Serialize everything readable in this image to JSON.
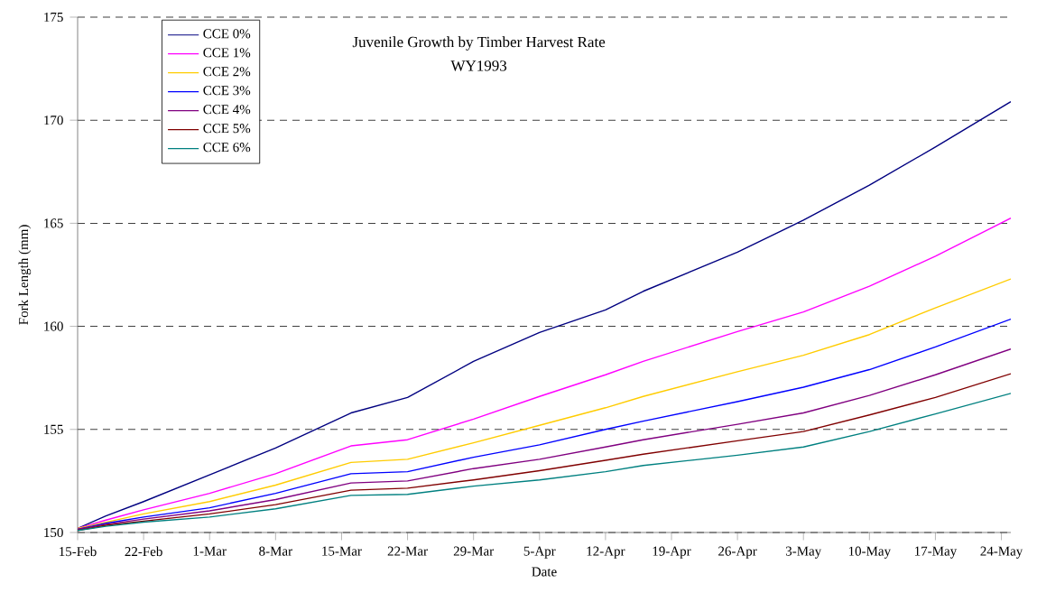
{
  "chart_data": {
    "type": "line",
    "title": "Juvenile Growth by Timber Harvest Rate",
    "subtitle": "WY1993",
    "xlabel": "Date",
    "ylabel": "Fork Length (mm)",
    "x": [
      "1993-02-15",
      "1993-02-18",
      "1993-02-22",
      "1993-03-01",
      "1993-03-08",
      "1993-03-16",
      "1993-03-22",
      "1993-03-29",
      "1993-04-05",
      "1993-04-12",
      "1993-04-16",
      "1993-04-26",
      "1993-05-03",
      "1993-05-10",
      "1993-05-17",
      "1993-05-25"
    ],
    "series": [
      {
        "name": "CCE 0%",
        "color": "#000080",
        "values": [
          150.2,
          150.8,
          151.5,
          152.8,
          154.1,
          155.8,
          156.55,
          158.3,
          159.7,
          160.8,
          161.7,
          163.6,
          165.15,
          166.85,
          168.7,
          170.9
        ]
      },
      {
        "name": "CCE 1%",
        "color": "#ff00ff",
        "values": [
          150.2,
          150.6,
          151.1,
          151.9,
          152.85,
          154.2,
          154.5,
          155.5,
          156.6,
          157.65,
          158.3,
          159.75,
          160.7,
          161.95,
          163.4,
          165.25
        ]
      },
      {
        "name": "CCE 2%",
        "color": "#ffcc00",
        "values": [
          150.2,
          150.5,
          150.9,
          151.5,
          152.3,
          153.4,
          153.55,
          154.35,
          155.2,
          156.05,
          156.6,
          157.8,
          158.6,
          159.6,
          160.9,
          162.3
        ]
      },
      {
        "name": "CCE 3%",
        "color": "#0000ff",
        "values": [
          150.15,
          150.45,
          150.75,
          151.2,
          151.9,
          152.85,
          152.95,
          153.65,
          154.25,
          155.0,
          155.4,
          156.35,
          157.05,
          157.9,
          159.0,
          160.35
        ]
      },
      {
        "name": "CCE 4%",
        "color": "#800080",
        "values": [
          150.15,
          150.4,
          150.65,
          151.05,
          151.6,
          152.4,
          152.5,
          153.1,
          153.55,
          154.15,
          154.5,
          155.25,
          155.8,
          156.65,
          157.65,
          158.9
        ]
      },
      {
        "name": "CCE 5%",
        "color": "#800000",
        "values": [
          150.1,
          150.35,
          150.55,
          150.9,
          151.35,
          152.05,
          152.15,
          152.55,
          153.0,
          153.5,
          153.8,
          154.45,
          154.9,
          155.7,
          156.55,
          157.7
        ]
      },
      {
        "name": "CCE 6%",
        "color": "#008080",
        "values": [
          150.1,
          150.3,
          150.5,
          150.75,
          151.15,
          151.8,
          151.85,
          152.25,
          152.55,
          152.95,
          153.25,
          153.75,
          154.15,
          154.9,
          155.75,
          156.75
        ]
      }
    ],
    "xlim": [
      "1993-02-15",
      "1993-05-25"
    ],
    "xticks": [
      {
        "value": "1993-02-15",
        "label": "15-Feb"
      },
      {
        "value": "1993-02-22",
        "label": "22-Feb"
      },
      {
        "value": "1993-03-01",
        "label": "1-Mar"
      },
      {
        "value": "1993-03-08",
        "label": "8-Mar"
      },
      {
        "value": "1993-03-15",
        "label": "15-Mar"
      },
      {
        "value": "1993-03-22",
        "label": "22-Mar"
      },
      {
        "value": "1993-03-29",
        "label": "29-Mar"
      },
      {
        "value": "1993-04-05",
        "label": "5-Apr"
      },
      {
        "value": "1993-04-12",
        "label": "12-Apr"
      },
      {
        "value": "1993-04-19",
        "label": "19-Apr"
      },
      {
        "value": "1993-04-26",
        "label": "26-Apr"
      },
      {
        "value": "1993-05-03",
        "label": "3-May"
      },
      {
        "value": "1993-05-10",
        "label": "10-May"
      },
      {
        "value": "1993-05-17",
        "label": "17-May"
      },
      {
        "value": "1993-05-24",
        "label": "24-May"
      }
    ],
    "ylim": [
      150,
      175
    ],
    "yticks": [
      150,
      155,
      160,
      165,
      170,
      175
    ],
    "grid": "y",
    "legend": "top left",
    "marker": "none",
    "line_style": "solid"
  }
}
